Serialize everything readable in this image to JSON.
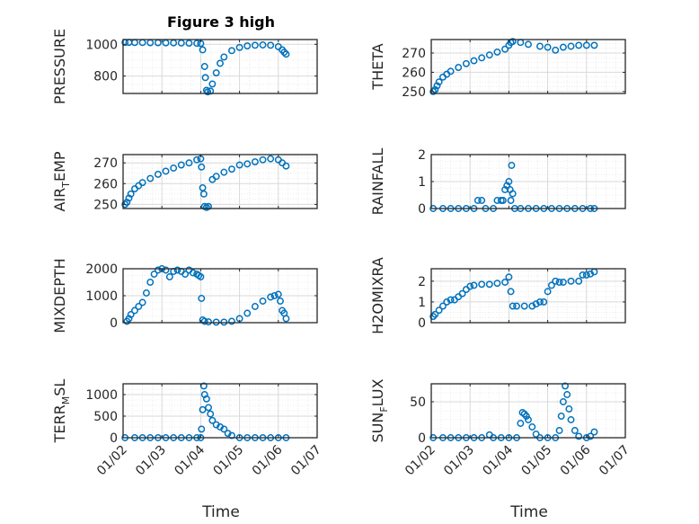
{
  "title": "Figure 3 high",
  "colors": {
    "marker": "#0072BD",
    "axis": "#262626",
    "grid": "#d9d9d9"
  },
  "x_ticks": [
    "01/02",
    "01/03",
    "01/04",
    "01/05",
    "01/06",
    "01/07"
  ],
  "x_label": "Time",
  "chart_data": [
    {
      "type": "scatter",
      "ylabel": "PRESSURE",
      "ylabel_sub": "",
      "ylabel_after": "",
      "ylim": [
        690,
        1030
      ],
      "yticks": [
        800,
        1000
      ],
      "points": [
        [
          2.05,
          1012
        ],
        [
          2.15,
          1012
        ],
        [
          2.3,
          1011
        ],
        [
          2.5,
          1011
        ],
        [
          2.7,
          1010
        ],
        [
          2.9,
          1010
        ],
        [
          3.1,
          1009
        ],
        [
          3.3,
          1009
        ],
        [
          3.5,
          1008
        ],
        [
          3.7,
          1007
        ],
        [
          3.9,
          1006
        ],
        [
          4.0,
          1005
        ],
        [
          4.05,
          965
        ],
        [
          4.1,
          860
        ],
        [
          4.12,
          790
        ],
        [
          4.15,
          710
        ],
        [
          4.18,
          700
        ],
        [
          4.25,
          705
        ],
        [
          4.3,
          750
        ],
        [
          4.4,
          820
        ],
        [
          4.5,
          880
        ],
        [
          4.6,
          920
        ],
        [
          4.8,
          960
        ],
        [
          5.0,
          980
        ],
        [
          5.2,
          990
        ],
        [
          5.4,
          994
        ],
        [
          5.6,
          996
        ],
        [
          5.8,
          994
        ],
        [
          6.0,
          985
        ],
        [
          6.1,
          965
        ],
        [
          6.15,
          950
        ],
        [
          6.2,
          938
        ]
      ]
    },
    {
      "type": "scatter",
      "ylabel": "THETA",
      "ylabel_sub": "",
      "ylabel_after": "",
      "ylim": [
        249,
        277
      ],
      "yticks": [
        250,
        260,
        270
      ],
      "points": [
        [
          2.05,
          250
        ],
        [
          2.1,
          251
        ],
        [
          2.15,
          253
        ],
        [
          2.2,
          255
        ],
        [
          2.3,
          257.5
        ],
        [
          2.4,
          259
        ],
        [
          2.5,
          260.5
        ],
        [
          2.7,
          262.5
        ],
        [
          2.9,
          264.5
        ],
        [
          3.1,
          266
        ],
        [
          3.3,
          267.5
        ],
        [
          3.5,
          269
        ],
        [
          3.7,
          270.5
        ],
        [
          3.9,
          272
        ],
        [
          4.0,
          274
        ],
        [
          4.05,
          275.5
        ],
        [
          4.1,
          276
        ],
        [
          4.3,
          275.5
        ],
        [
          4.5,
          274.5
        ],
        [
          4.8,
          273.5
        ],
        [
          5.0,
          273
        ],
        [
          5.2,
          271.5
        ],
        [
          5.4,
          273
        ],
        [
          5.6,
          273.5
        ],
        [
          5.8,
          274
        ],
        [
          6.0,
          274
        ],
        [
          6.2,
          274
        ]
      ]
    },
    {
      "type": "scatter",
      "ylabel": "AIR",
      "ylabel_sub": "T",
      "ylabel_after": "EMP",
      "ylim": [
        248,
        274
      ],
      "yticks": [
        250,
        260,
        270
      ],
      "points": [
        [
          2.05,
          250
        ],
        [
          2.1,
          251
        ],
        [
          2.15,
          253
        ],
        [
          2.2,
          255
        ],
        [
          2.3,
          257.5
        ],
        [
          2.4,
          259
        ],
        [
          2.5,
          260.5
        ],
        [
          2.7,
          262.5
        ],
        [
          2.9,
          264.5
        ],
        [
          3.1,
          266
        ],
        [
          3.3,
          267.5
        ],
        [
          3.5,
          269
        ],
        [
          3.7,
          270
        ],
        [
          3.9,
          271.5
        ],
        [
          4.0,
          272
        ],
        [
          4.02,
          268
        ],
        [
          4.05,
          258
        ],
        [
          4.08,
          255
        ],
        [
          4.1,
          249
        ],
        [
          4.15,
          248.5
        ],
        [
          4.2,
          249
        ],
        [
          4.3,
          262
        ],
        [
          4.4,
          263.5
        ],
        [
          4.6,
          265.5
        ],
        [
          4.8,
          267
        ],
        [
          5.0,
          269
        ],
        [
          5.2,
          269.5
        ],
        [
          5.4,
          270.5
        ],
        [
          5.6,
          271.5
        ],
        [
          5.8,
          272
        ],
        [
          6.0,
          271.5
        ],
        [
          6.1,
          270
        ],
        [
          6.2,
          268.5
        ]
      ]
    },
    {
      "type": "scatter",
      "ylabel": "RAINFALL",
      "ylabel_sub": "",
      "ylabel_after": "",
      "ylim": [
        0,
        2
      ],
      "yticks": [
        0,
        1,
        2
      ],
      "points": [
        [
          2.05,
          0
        ],
        [
          2.3,
          0
        ],
        [
          2.5,
          0
        ],
        [
          2.7,
          0
        ],
        [
          2.9,
          0
        ],
        [
          3.1,
          0
        ],
        [
          3.2,
          0.3
        ],
        [
          3.3,
          0.3
        ],
        [
          3.4,
          0
        ],
        [
          3.6,
          0
        ],
        [
          3.7,
          0.3
        ],
        [
          3.8,
          0.3
        ],
        [
          3.85,
          0.3
        ],
        [
          3.9,
          0.7
        ],
        [
          3.95,
          0.85
        ],
        [
          4.0,
          1.0
        ],
        [
          4.03,
          0.7
        ],
        [
          4.05,
          0.3
        ],
        [
          4.07,
          1.6
        ],
        [
          4.1,
          0.55
        ],
        [
          4.15,
          0
        ],
        [
          4.3,
          0
        ],
        [
          4.5,
          0
        ],
        [
          4.7,
          0
        ],
        [
          4.9,
          0
        ],
        [
          5.1,
          0
        ],
        [
          5.3,
          0
        ],
        [
          5.5,
          0
        ],
        [
          5.7,
          0
        ],
        [
          5.9,
          0
        ],
        [
          6.1,
          0
        ],
        [
          6.2,
          0
        ]
      ]
    },
    {
      "type": "scatter",
      "ylabel": "MIXDEPTH",
      "ylabel_sub": "",
      "ylabel_after": "",
      "ylim": [
        0,
        2000
      ],
      "yticks": [
        0,
        1000,
        2000
      ],
      "points": [
        [
          2.1,
          50
        ],
        [
          2.15,
          150
        ],
        [
          2.2,
          300
        ],
        [
          2.3,
          450
        ],
        [
          2.4,
          600
        ],
        [
          2.5,
          750
        ],
        [
          2.6,
          1100
        ],
        [
          2.7,
          1500
        ],
        [
          2.8,
          1800
        ],
        [
          2.9,
          1950
        ],
        [
          3.0,
          2000
        ],
        [
          3.1,
          1950
        ],
        [
          3.2,
          1700
        ],
        [
          3.3,
          1900
        ],
        [
          3.4,
          1950
        ],
        [
          3.5,
          1900
        ],
        [
          3.6,
          1800
        ],
        [
          3.7,
          1950
        ],
        [
          3.8,
          1850
        ],
        [
          3.9,
          1800
        ],
        [
          3.95,
          1750
        ],
        [
          4.0,
          1700
        ],
        [
          4.02,
          900
        ],
        [
          4.05,
          100
        ],
        [
          4.1,
          50
        ],
        [
          4.2,
          30
        ],
        [
          4.4,
          20
        ],
        [
          4.6,
          20
        ],
        [
          4.8,
          50
        ],
        [
          5.0,
          150
        ],
        [
          5.2,
          350
        ],
        [
          5.4,
          600
        ],
        [
          5.6,
          800
        ],
        [
          5.8,
          950
        ],
        [
          5.9,
          1000
        ],
        [
          6.0,
          1050
        ],
        [
          6.05,
          800
        ],
        [
          6.1,
          450
        ],
        [
          6.15,
          350
        ],
        [
          6.2,
          150
        ]
      ]
    },
    {
      "type": "scatter",
      "ylabel": "H2OMIXRA",
      "ylabel_sub": "",
      "ylabel_after": "",
      "ylim": [
        0,
        2.6
      ],
      "yticks": [
        0,
        1,
        2
      ],
      "points": [
        [
          2.05,
          0.3
        ],
        [
          2.1,
          0.4
        ],
        [
          2.2,
          0.6
        ],
        [
          2.3,
          0.8
        ],
        [
          2.4,
          1.0
        ],
        [
          2.5,
          1.1
        ],
        [
          2.6,
          1.1
        ],
        [
          2.7,
          1.25
        ],
        [
          2.8,
          1.4
        ],
        [
          2.9,
          1.6
        ],
        [
          3.0,
          1.75
        ],
        [
          3.1,
          1.8
        ],
        [
          3.3,
          1.85
        ],
        [
          3.5,
          1.85
        ],
        [
          3.7,
          1.9
        ],
        [
          3.9,
          1.95
        ],
        [
          4.0,
          2.2
        ],
        [
          4.05,
          1.5
        ],
        [
          4.1,
          0.8
        ],
        [
          4.2,
          0.8
        ],
        [
          4.4,
          0.8
        ],
        [
          4.6,
          0.8
        ],
        [
          4.7,
          0.9
        ],
        [
          4.8,
          1.0
        ],
        [
          4.9,
          1.0
        ],
        [
          5.0,
          1.5
        ],
        [
          5.1,
          1.8
        ],
        [
          5.2,
          2.0
        ],
        [
          5.3,
          1.95
        ],
        [
          5.4,
          1.95
        ],
        [
          5.6,
          2.0
        ],
        [
          5.8,
          2.0
        ],
        [
          5.9,
          2.3
        ],
        [
          6.0,
          2.3
        ],
        [
          6.1,
          2.35
        ],
        [
          6.2,
          2.45
        ]
      ]
    },
    {
      "type": "scatter",
      "ylabel": "TERR",
      "ylabel_sub": "M",
      "ylabel_after": "SL",
      "ylim": [
        0,
        1250
      ],
      "yticks": [
        0,
        500,
        1000
      ],
      "points": [
        [
          2.05,
          0
        ],
        [
          2.3,
          0
        ],
        [
          2.5,
          0
        ],
        [
          2.7,
          0
        ],
        [
          2.9,
          0
        ],
        [
          3.1,
          0
        ],
        [
          3.3,
          0
        ],
        [
          3.5,
          0
        ],
        [
          3.7,
          0
        ],
        [
          3.9,
          0
        ],
        [
          4.0,
          0
        ],
        [
          4.02,
          200
        ],
        [
          4.05,
          650
        ],
        [
          4.08,
          1200
        ],
        [
          4.1,
          1000
        ],
        [
          4.15,
          900
        ],
        [
          4.2,
          700
        ],
        [
          4.25,
          550
        ],
        [
          4.3,
          400
        ],
        [
          4.4,
          300
        ],
        [
          4.5,
          250
        ],
        [
          4.6,
          200
        ],
        [
          4.7,
          100
        ],
        [
          4.8,
          50
        ],
        [
          5.0,
          0
        ],
        [
          5.2,
          0
        ],
        [
          5.4,
          0
        ],
        [
          5.6,
          0
        ],
        [
          5.8,
          0
        ],
        [
          6.0,
          0
        ],
        [
          6.2,
          0
        ]
      ]
    },
    {
      "type": "scatter",
      "ylabel": "SUN",
      "ylabel_sub": "F",
      "ylabel_after": "LUX",
      "ylim": [
        0,
        75
      ],
      "yticks": [
        0,
        50
      ],
      "points": [
        [
          2.05,
          0
        ],
        [
          2.3,
          0
        ],
        [
          2.5,
          0
        ],
        [
          2.7,
          0
        ],
        [
          2.9,
          0
        ],
        [
          3.1,
          0
        ],
        [
          3.3,
          0
        ],
        [
          3.5,
          4
        ],
        [
          3.6,
          0
        ],
        [
          3.8,
          0
        ],
        [
          4.0,
          0
        ],
        [
          4.2,
          0
        ],
        [
          4.3,
          20
        ],
        [
          4.35,
          35
        ],
        [
          4.4,
          33
        ],
        [
          4.45,
          30
        ],
        [
          4.5,
          25
        ],
        [
          4.6,
          15
        ],
        [
          4.7,
          5
        ],
        [
          4.8,
          0
        ],
        [
          5.0,
          0
        ],
        [
          5.2,
          0
        ],
        [
          5.3,
          10
        ],
        [
          5.35,
          30
        ],
        [
          5.4,
          50
        ],
        [
          5.45,
          72
        ],
        [
          5.5,
          60
        ],
        [
          5.55,
          40
        ],
        [
          5.6,
          25
        ],
        [
          5.7,
          10
        ],
        [
          5.8,
          2
        ],
        [
          6.0,
          0
        ],
        [
          6.1,
          2
        ],
        [
          6.2,
          8
        ]
      ]
    }
  ]
}
